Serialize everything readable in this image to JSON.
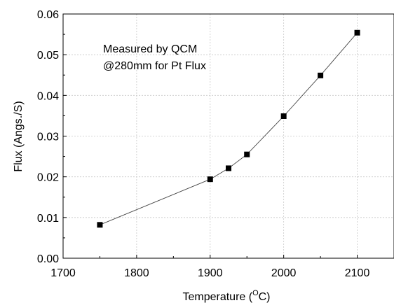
{
  "chart_data": {
    "type": "scatter",
    "title": "",
    "xlabel": "Temperature (",
    "xlabel_sup": "O",
    "xlabel_unit": "C)",
    "ylabel": "Flux (Angs./S)",
    "xlim": [
      1700,
      2150
    ],
    "ylim": [
      0,
      0.06
    ],
    "xticks": [
      "1700",
      "1800",
      "1900",
      "2000",
      "2100"
    ],
    "xtick_values": [
      1700,
      1800,
      1900,
      2000,
      2100
    ],
    "yticks": [
      "0.00",
      "0.01",
      "0.02",
      "0.03",
      "0.04",
      "0.05",
      "0.06"
    ],
    "ytick_values": [
      0,
      0.01,
      0.02,
      0.03,
      0.04,
      0.05,
      0.06
    ],
    "grid": true,
    "annotation": [
      "Measured by QCM",
      "@280mm for Pt Flux"
    ],
    "series": [
      {
        "x": [
          1750,
          1900,
          1925,
          1950,
          2000,
          2050,
          2100
        ],
        "y": [
          0.0082,
          0.0194,
          0.0221,
          0.0255,
          0.0349,
          0.0449,
          0.0554
        ],
        "line": true,
        "marker": "square",
        "color": "#000000"
      }
    ]
  }
}
